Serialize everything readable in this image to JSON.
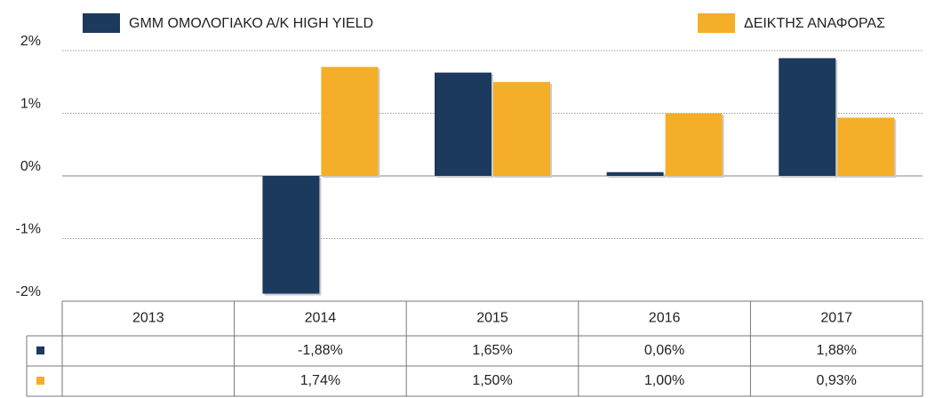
{
  "chart_data": {
    "type": "bar",
    "categories": [
      "2013",
      "2014",
      "2015",
      "2016",
      "2017"
    ],
    "series": [
      {
        "name": "GMM ΟΜΟΛΟΓΙΑΚΟ Α/Κ HIGH YIELD",
        "color": "#1b3a5e",
        "values": [
          null,
          -1.88,
          1.65,
          0.06,
          1.88
        ],
        "value_labels": [
          null,
          "-1,88%",
          "1,65%",
          "0,06%",
          "1,88%"
        ]
      },
      {
        "name": "ΔΕΙΚΤΗΣ ΑΝΑΦΟΡΑΣ",
        "color": "#f5ae28",
        "values": [
          null,
          1.74,
          1.5,
          1.0,
          0.93
        ],
        "value_labels": [
          null,
          "1,74%",
          "1,50%",
          "1,00%",
          "0,93%"
        ]
      }
    ],
    "ylim": [
      -2,
      2
    ],
    "yticks": [
      {
        "value": -2,
        "label": "-2%"
      },
      {
        "value": -1,
        "label": "-1%"
      },
      {
        "value": 0,
        "label": "0%"
      },
      {
        "value": 1,
        "label": "1%"
      },
      {
        "value": 2,
        "label": "2%"
      }
    ],
    "grid": true,
    "legend": "top"
  }
}
